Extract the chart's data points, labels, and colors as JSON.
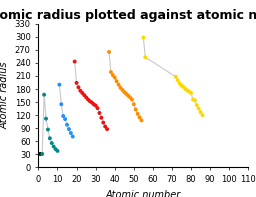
{
  "title": "Atomic radius plotted against atomic number",
  "xlabel": "Atomic number",
  "ylabel": "Atomic radius",
  "xlim": [
    0,
    110
  ],
  "ylim": [
    0,
    330
  ],
  "xticks": [
    0,
    10,
    20,
    30,
    40,
    50,
    60,
    70,
    80,
    90,
    100,
    110
  ],
  "yticks": [
    0,
    30,
    60,
    90,
    120,
    150,
    180,
    210,
    240,
    270,
    300,
    330
  ],
  "groups": [
    {
      "color": "#000000",
      "atomic_numbers": [
        1
      ],
      "radii": [
        31
      ]
    },
    {
      "color": "#008B8B",
      "atomic_numbers": [
        2,
        3,
        4,
        5,
        6,
        7,
        8,
        9,
        10
      ],
      "radii": [
        31,
        167,
        112,
        87,
        67,
        56,
        48,
        42,
        38
      ]
    },
    {
      "color": "#1E90FF",
      "atomic_numbers": [
        11,
        12,
        13,
        14,
        15,
        16,
        17,
        18
      ],
      "radii": [
        190,
        145,
        118,
        111,
        98,
        88,
        79,
        71
      ]
    },
    {
      "color": "#EE1111",
      "atomic_numbers": [
        19,
        20,
        21,
        22,
        23,
        24,
        25,
        26,
        27,
        28,
        29,
        30,
        31,
        32,
        33,
        34,
        35,
        36
      ],
      "radii": [
        243,
        194,
        184,
        176,
        171,
        166,
        161,
        156,
        152,
        149,
        145,
        142,
        136,
        125,
        114,
        103,
        94,
        88
      ]
    },
    {
      "color": "#FF8C00",
      "atomic_numbers": [
        37,
        38,
        39,
        40,
        41,
        42,
        43,
        44,
        45,
        46,
        47,
        48,
        49,
        50,
        51,
        52,
        53,
        54
      ],
      "radii": [
        265,
        219,
        212,
        206,
        198,
        190,
        183,
        178,
        173,
        169,
        165,
        161,
        156,
        145,
        133,
        123,
        115,
        108
      ]
    },
    {
      "color": "#FFD700",
      "atomic_numbers": [
        55,
        56,
        72,
        73,
        74,
        75,
        76,
        77,
        78,
        79,
        80,
        81,
        82,
        83,
        84,
        85,
        86
      ],
      "radii": [
        298,
        253,
        208,
        200,
        193,
        188,
        185,
        180,
        177,
        174,
        171,
        156,
        154,
        143,
        135,
        127,
        120
      ]
    }
  ],
  "title_fontsize": 9,
  "label_fontsize": 7,
  "tick_fontsize": 6
}
